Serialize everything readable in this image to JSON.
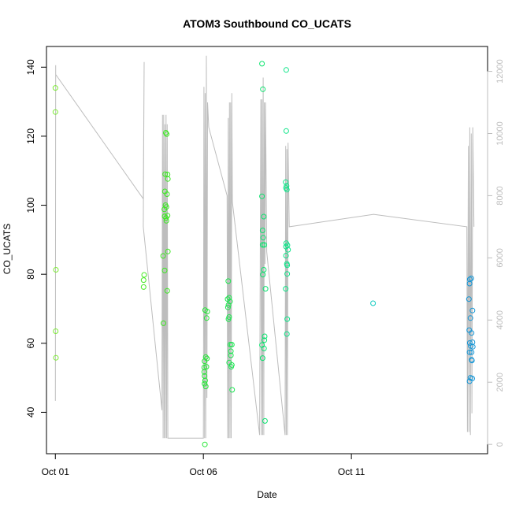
{
  "chart_data": {
    "type": "scatter",
    "title": "ATOM3 Southbound CO_UCATS",
    "xlabel": "Date",
    "ylabel": "CO_UCATS",
    "x_unit": "days from Oct 01",
    "xlim": [
      -0.3,
      14.6
    ],
    "ylim": [
      28,
      146
    ],
    "y2lim": [
      -300,
      12800
    ],
    "x_ticks": [
      {
        "value": 0,
        "label": "Oct 01"
      },
      {
        "value": 5,
        "label": "Oct 06"
      },
      {
        "value": 10,
        "label": "Oct 11"
      }
    ],
    "y_ticks": [
      40,
      60,
      80,
      100,
      120,
      140
    ],
    "y2_ticks": [
      0,
      2000,
      4000,
      6000,
      8000,
      10000,
      12000
    ],
    "grid": false,
    "color_scale": "green-to-blue by date",
    "points": [
      {
        "x": 0.0,
        "y": 134
      },
      {
        "x": 0.0,
        "y": 127
      },
      {
        "x": 0.02,
        "y": 81.3
      },
      {
        "x": 0.01,
        "y": 63.5
      },
      {
        "x": 0.02,
        "y": 55.8
      },
      {
        "x": 3.0,
        "y": 79.8
      },
      {
        "x": 2.98,
        "y": 78.3
      },
      {
        "x": 2.98,
        "y": 76.3
      },
      {
        "x": 3.73,
        "y": 121
      },
      {
        "x": 3.76,
        "y": 120.6
      },
      {
        "x": 3.71,
        "y": 109
      },
      {
        "x": 3.79,
        "y": 108.9
      },
      {
        "x": 3.8,
        "y": 107.6
      },
      {
        "x": 3.7,
        "y": 104
      },
      {
        "x": 3.77,
        "y": 103.2
      },
      {
        "x": 3.72,
        "y": 100
      },
      {
        "x": 3.75,
        "y": 99.5
      },
      {
        "x": 3.68,
        "y": 98.8
      },
      {
        "x": 3.79,
        "y": 97
      },
      {
        "x": 3.69,
        "y": 96.8
      },
      {
        "x": 3.74,
        "y": 96.3
      },
      {
        "x": 3.75,
        "y": 95.5
      },
      {
        "x": 3.64,
        "y": 85.3
      },
      {
        "x": 3.8,
        "y": 86.6
      },
      {
        "x": 3.69,
        "y": 81.1
      },
      {
        "x": 3.78,
        "y": 75.2
      },
      {
        "x": 3.65,
        "y": 65.8
      },
      {
        "x": 5.06,
        "y": 69.6
      },
      {
        "x": 5.13,
        "y": 69.2
      },
      {
        "x": 5.11,
        "y": 67.3
      },
      {
        "x": 5.08,
        "y": 56
      },
      {
        "x": 5.12,
        "y": 55.6
      },
      {
        "x": 5.04,
        "y": 54.8
      },
      {
        "x": 5.1,
        "y": 53.2
      },
      {
        "x": 5.03,
        "y": 53
      },
      {
        "x": 5.03,
        "y": 51.7
      },
      {
        "x": 5.04,
        "y": 50.5
      },
      {
        "x": 5.06,
        "y": 49.2
      },
      {
        "x": 5.04,
        "y": 48.3
      },
      {
        "x": 5.08,
        "y": 47.5
      },
      {
        "x": 5.05,
        "y": 30.7
      },
      {
        "x": 5.84,
        "y": 78
      },
      {
        "x": 5.87,
        "y": 73.2
      },
      {
        "x": 5.82,
        "y": 72.8
      },
      {
        "x": 5.9,
        "y": 72.1
      },
      {
        "x": 5.85,
        "y": 71.1
      },
      {
        "x": 5.83,
        "y": 70.4
      },
      {
        "x": 5.87,
        "y": 67.6
      },
      {
        "x": 5.85,
        "y": 67
      },
      {
        "x": 5.91,
        "y": 59.6
      },
      {
        "x": 5.96,
        "y": 59.6
      },
      {
        "x": 5.93,
        "y": 57.7
      },
      {
        "x": 5.93,
        "y": 56.5
      },
      {
        "x": 5.87,
        "y": 54.4
      },
      {
        "x": 5.96,
        "y": 53.7
      },
      {
        "x": 5.94,
        "y": 53.2
      },
      {
        "x": 5.97,
        "y": 46.5
      },
      {
        "x": 6.98,
        "y": 141
      },
      {
        "x": 7.01,
        "y": 133.6
      },
      {
        "x": 6.98,
        "y": 102.6
      },
      {
        "x": 7.04,
        "y": 96.7
      },
      {
        "x": 7.0,
        "y": 92.7
      },
      {
        "x": 7.02,
        "y": 90.6
      },
      {
        "x": 7.0,
        "y": 88.5
      },
      {
        "x": 7.06,
        "y": 88.5
      },
      {
        "x": 7.04,
        "y": 81.3
      },
      {
        "x": 7.01,
        "y": 79.9
      },
      {
        "x": 7.1,
        "y": 75.8
      },
      {
        "x": 7.07,
        "y": 62
      },
      {
        "x": 7.06,
        "y": 60.9
      },
      {
        "x": 6.98,
        "y": 59.5
      },
      {
        "x": 7.05,
        "y": 58.5
      },
      {
        "x": 7.0,
        "y": 55.7
      },
      {
        "x": 7.08,
        "y": 37.5
      },
      {
        "x": 7.8,
        "y": 139.2
      },
      {
        "x": 7.8,
        "y": 121.5
      },
      {
        "x": 7.78,
        "y": 106.7
      },
      {
        "x": 7.81,
        "y": 105.6
      },
      {
        "x": 7.79,
        "y": 105
      },
      {
        "x": 7.82,
        "y": 104.5
      },
      {
        "x": 7.8,
        "y": 89
      },
      {
        "x": 7.84,
        "y": 88.4
      },
      {
        "x": 7.79,
        "y": 88
      },
      {
        "x": 7.86,
        "y": 87.1
      },
      {
        "x": 7.79,
        "y": 85.4
      },
      {
        "x": 7.82,
        "y": 83
      },
      {
        "x": 7.83,
        "y": 82.6
      },
      {
        "x": 7.83,
        "y": 80.1
      },
      {
        "x": 7.78,
        "y": 75.8
      },
      {
        "x": 7.83,
        "y": 67
      },
      {
        "x": 7.82,
        "y": 62.7
      },
      {
        "x": 10.73,
        "y": 71.6
      },
      {
        "x": 14.0,
        "y": 78.5
      },
      {
        "x": 14.05,
        "y": 78.8
      },
      {
        "x": 13.99,
        "y": 77.3
      },
      {
        "x": 13.97,
        "y": 72.8
      },
      {
        "x": 14.09,
        "y": 69.5
      },
      {
        "x": 14.02,
        "y": 67.3
      },
      {
        "x": 13.98,
        "y": 63.8
      },
      {
        "x": 14.06,
        "y": 63
      },
      {
        "x": 14.0,
        "y": 60.1
      },
      {
        "x": 14.09,
        "y": 60.3
      },
      {
        "x": 14.03,
        "y": 59.2
      },
      {
        "x": 14.1,
        "y": 59
      },
      {
        "x": 13.99,
        "y": 57.4
      },
      {
        "x": 14.06,
        "y": 57.4
      },
      {
        "x": 14.06,
        "y": 55.2
      },
      {
        "x": 14.07,
        "y": 55
      },
      {
        "x": 14.02,
        "y": 50
      },
      {
        "x": 14.08,
        "y": 49.8
      },
      {
        "x": 13.99,
        "y": 49
      }
    ],
    "secondary_line_color": "#bdbdbd",
    "secondary_line": [
      [
        0.0,
        1400
      ],
      [
        0.01,
        12000
      ],
      [
        0.01,
        12200
      ],
      [
        0.01,
        11900
      ],
      [
        2.97,
        7900
      ],
      [
        3.0,
        12300
      ],
      [
        2.97,
        7000
      ],
      [
        3.6,
        1100
      ],
      [
        3.62,
        10600
      ],
      [
        3.64,
        200
      ],
      [
        3.66,
        10600
      ],
      [
        3.68,
        200
      ],
      [
        3.7,
        10300
      ],
      [
        3.72,
        200
      ],
      [
        3.74,
        10600
      ],
      [
        3.76,
        200
      ],
      [
        3.78,
        10300
      ],
      [
        3.8,
        200
      ],
      [
        5.0,
        200
      ],
      [
        5.02,
        11500
      ],
      [
        5.04,
        200
      ],
      [
        5.06,
        11300
      ],
      [
        5.08,
        200
      ],
      [
        5.1,
        12500
      ],
      [
        5.12,
        1500
      ],
      [
        5.14,
        11000
      ],
      [
        5.18,
        10200
      ],
      [
        5.8,
        8000
      ],
      [
        5.82,
        200
      ],
      [
        5.84,
        10500
      ],
      [
        5.86,
        200
      ],
      [
        5.88,
        11000
      ],
      [
        5.9,
        200
      ],
      [
        5.92,
        11000
      ],
      [
        5.94,
        200
      ],
      [
        5.96,
        11300
      ],
      [
        5.98,
        7800
      ],
      [
        6.9,
        300
      ],
      [
        6.94,
        11100
      ],
      [
        6.96,
        300
      ],
      [
        6.98,
        11100
      ],
      [
        7.0,
        300
      ],
      [
        7.02,
        11800
      ],
      [
        7.04,
        300
      ],
      [
        7.06,
        11000
      ],
      [
        7.08,
        5800
      ],
      [
        7.1,
        11000
      ],
      [
        7.14,
        6200
      ],
      [
        7.76,
        300
      ],
      [
        7.78,
        9600
      ],
      [
        7.8,
        300
      ],
      [
        7.82,
        9500
      ],
      [
        7.84,
        300
      ],
      [
        7.86,
        9700
      ],
      [
        7.9,
        7000
      ],
      [
        10.75,
        7400
      ],
      [
        13.9,
        7000
      ],
      [
        13.92,
        400
      ],
      [
        13.95,
        9600
      ],
      [
        13.97,
        400
      ],
      [
        14.0,
        10200
      ],
      [
        14.02,
        300
      ],
      [
        14.05,
        10000
      ],
      [
        14.07,
        1000
      ],
      [
        14.1,
        10200
      ],
      [
        14.14,
        7000
      ]
    ]
  }
}
